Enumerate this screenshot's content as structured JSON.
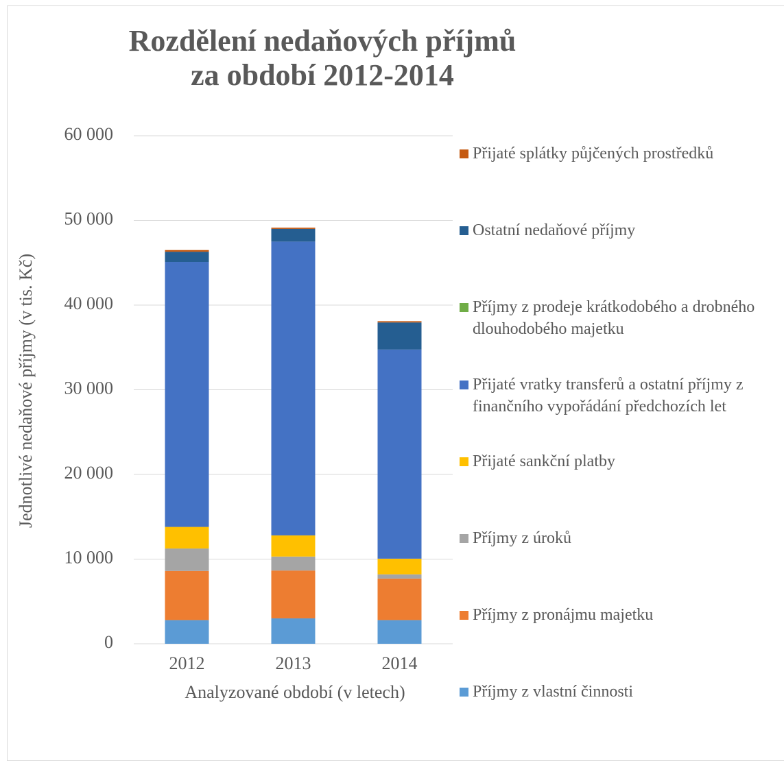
{
  "chart_data": {
    "type": "stacked_bar",
    "title": "Rozdělení nedaňových příjmů za období 2012-2014",
    "x_label": "Analyzované období (v letech)",
    "y_label": "Jednotlivé nedaňové příjmy (v tis. Kč)",
    "categories": [
      "2012",
      "2013",
      "2014"
    ],
    "series": [
      {
        "name": "Příjmy z vlastní činnosti",
        "color": "#5b9bd5",
        "values": [
          2800,
          3000,
          2800
        ]
      },
      {
        "name": "Příjmy z pronájmu majetku",
        "color": "#ed7d31",
        "values": [
          5800,
          5650,
          4900
        ]
      },
      {
        "name": "Příjmy z úroků",
        "color": "#a5a5a5",
        "values": [
          2650,
          1650,
          500
        ]
      },
      {
        "name": "Přijaté sankční platby",
        "color": "#ffc000",
        "values": [
          2550,
          2500,
          1850
        ]
      },
      {
        "name": "Přijaté vratky transferů a ostatní příjmy z finančního vypořádání předchozích let",
        "color": "#4472c4",
        "values": [
          31300,
          34700,
          24700
        ]
      },
      {
        "name": "Příjmy z prodeje krátkodobého a drobného dlouhodobého majetku",
        "color": "#70ad47",
        "values": [
          0,
          0,
          0
        ]
      },
      {
        "name": "Ostatní nedaňové příjmy",
        "color": "#255e91",
        "values": [
          1200,
          1500,
          3200
        ]
      },
      {
        "name": "Přijaté splátky půjčených prostředků",
        "color": "#c55a11",
        "values": [
          200,
          150,
          150
        ]
      }
    ],
    "ylim": [
      0,
      60000
    ],
    "yticks": [
      0,
      {
        "value": 10000,
        "label": "10 000"
      },
      {
        "value": 20000,
        "label": "20 000"
      },
      {
        "value": 30000,
        "label": "30 000"
      },
      {
        "value": 40000,
        "label": "40 000"
      },
      {
        "value": 50000,
        "label": "50 000"
      },
      {
        "value": 60000,
        "label": "60 000"
      }
    ],
    "grid": true
  }
}
